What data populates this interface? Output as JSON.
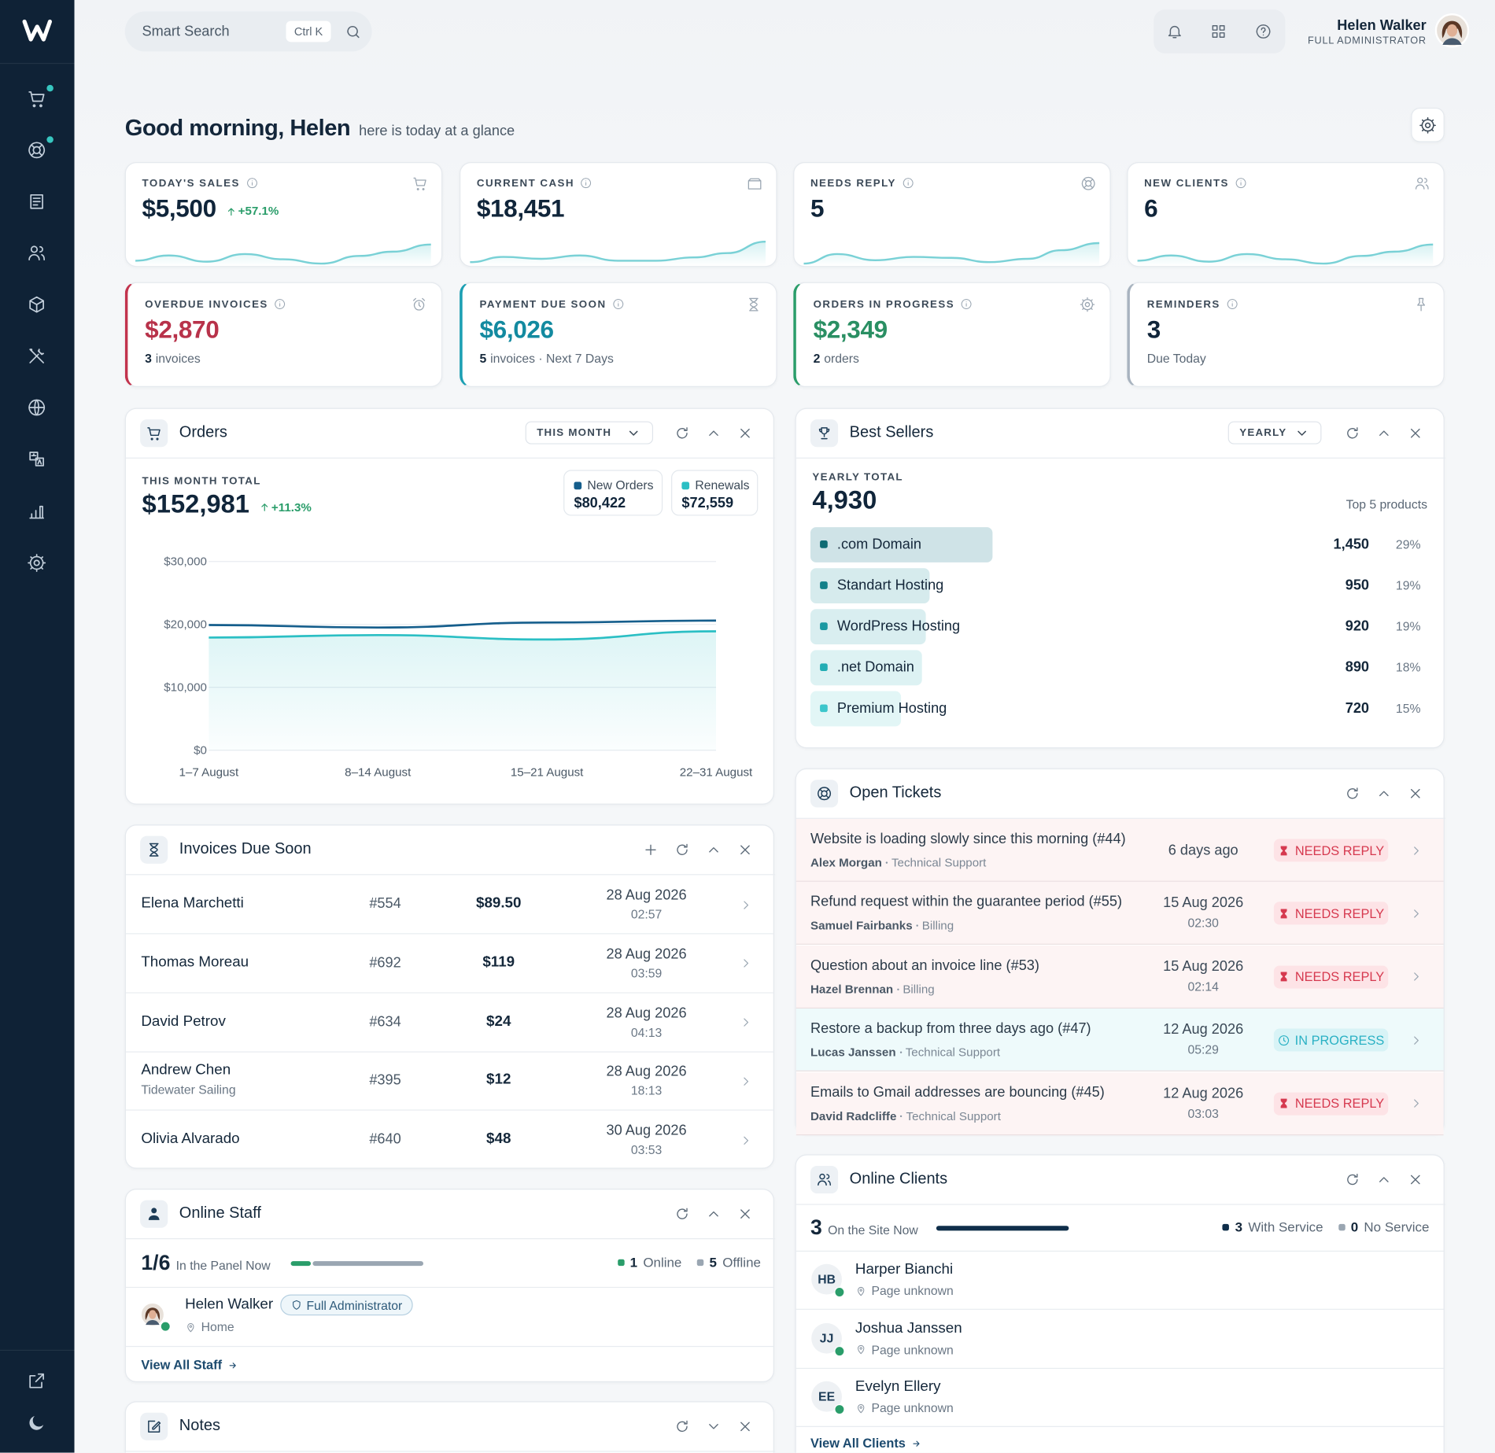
{
  "topbar": {
    "search_placeholder": "Smart Search",
    "shortcut": "Ctrl K",
    "user_name": "Helen Walker",
    "user_role": "FULL ADMINISTRATOR"
  },
  "greeting": {
    "title": "Good morning, Helen",
    "subtitle": "here is today at a glance"
  },
  "kpis": [
    {
      "label": "TODAY'S SALES",
      "value": "$5,500",
      "change": "+57.1%"
    },
    {
      "label": "CURRENT CASH",
      "value": "$18,451"
    },
    {
      "label": "NEEDS REPLY",
      "value": "5"
    },
    {
      "label": "NEW CLIENTS",
      "value": "6"
    }
  ],
  "status_cards": [
    {
      "label": "OVERDUE INVOICES",
      "value": "$2,870",
      "count": "3",
      "note": "invoices"
    },
    {
      "label": "PAYMENT DUE SOON",
      "value": "$6,026",
      "count": "5",
      "note": "invoices · Next 7 Days"
    },
    {
      "label": "ORDERS IN PROGRESS",
      "value": "$2,349",
      "count": "2",
      "note": "orders"
    },
    {
      "label": "REMINDERS",
      "value": "3",
      "note": "Due Today"
    }
  ],
  "orders": {
    "title": "Orders",
    "period": "THIS MONTH",
    "total_label": "THIS MONTH TOTAL",
    "total": "$152,981",
    "change": "+11.3%",
    "chart": {
      "type": "line",
      "categories": [
        "1–7 August",
        "8–14 August",
        "15–21 August",
        "22–31 August"
      ],
      "series": [
        {
          "name": "New Orders",
          "total": "$80,422",
          "color": "#155e8c",
          "values": [
            19900,
            19500,
            20300,
            20600
          ]
        },
        {
          "name": "Renewals",
          "total": "$72,559",
          "color": "#2bbfc4",
          "values": [
            17900,
            18300,
            17600,
            18900
          ]
        }
      ],
      "ylim": [
        0,
        30000
      ],
      "yticks": [
        {
          "value": 0,
          "label": "$0"
        },
        {
          "value": 10000,
          "label": "$10,000"
        },
        {
          "value": 20000,
          "label": "$20,000"
        },
        {
          "value": 30000,
          "label": "$30,000"
        }
      ],
      "grid": true
    }
  },
  "best_sellers": {
    "title": "Best Sellers",
    "period": "YEARLY",
    "total_label": "YEARLY TOTAL",
    "total": "4,930",
    "note": "Top 5 products",
    "items": [
      {
        "name": ".com Domain",
        "value": 1450,
        "value_label": "1,450",
        "share": "29%",
        "color": "#0f6b73"
      },
      {
        "name": "Standart Hosting",
        "value": 950,
        "value_label": "950",
        "share": "19%",
        "color": "#138089"
      },
      {
        "name": "WordPress Hosting",
        "value": 920,
        "value_label": "920",
        "share": "19%",
        "color": "#1a99a2"
      },
      {
        "name": ".net Domain",
        "value": 890,
        "value_label": "890",
        "share": "18%",
        "color": "#23adb4"
      },
      {
        "name": "Premium Hosting",
        "value": 720,
        "value_label": "720",
        "share": "15%",
        "color": "#3cc6cb"
      }
    ]
  },
  "open_tickets": {
    "title": "Open Tickets",
    "rows": [
      {
        "subject": "Website is loading slowly since this morning (#44)",
        "client": "Alex Morgan",
        "department": "Technical Support",
        "date": "6 days ago",
        "status": "NEEDS REPLY"
      },
      {
        "subject": "Refund request within the guarantee period (#55)",
        "client": "Samuel Fairbanks",
        "department": "Billing",
        "date": "15 Aug 2026",
        "time": "02:30",
        "status": "NEEDS REPLY"
      },
      {
        "subject": "Question about an invoice line (#53)",
        "client": "Hazel Brennan",
        "department": "Billing",
        "date": "15 Aug 2026",
        "time": "02:14",
        "status": "NEEDS REPLY"
      },
      {
        "subject": "Restore a backup from three days ago (#47)",
        "client": "Lucas Janssen",
        "department": "Technical Support",
        "date": "12 Aug 2026",
        "time": "05:29",
        "status": "IN PROGRESS"
      },
      {
        "subject": "Emails to Gmail addresses are bouncing (#45)",
        "client": "David Radcliffe",
        "department": "Technical Support",
        "date": "12 Aug 2026",
        "time": "03:03",
        "status": "NEEDS REPLY"
      }
    ]
  },
  "invoices": {
    "title": "Invoices Due Soon",
    "rows": [
      {
        "name": "Elena Marchetti",
        "number": "#554",
        "amount": "$89.50",
        "date": "28 Aug 2026",
        "time": "02:57"
      },
      {
        "name": "Thomas Moreau",
        "number": "#692",
        "amount": "$119",
        "date": "28 Aug 2026",
        "time": "03:59"
      },
      {
        "name": "David Petrov",
        "number": "#634",
        "amount": "$24",
        "date": "28 Aug 2026",
        "time": "04:13"
      },
      {
        "name": "Andrew Chen",
        "company": "Tidewater Sailing",
        "number": "#395",
        "amount": "$12",
        "date": "28 Aug 2026",
        "time": "18:13"
      },
      {
        "name": "Olivia Alvarado",
        "number": "#640",
        "amount": "$48",
        "date": "30 Aug 2026",
        "time": "03:53"
      }
    ]
  },
  "online_staff": {
    "title": "Online Staff",
    "count": "1/6",
    "count_label": "In the Panel Now",
    "online": 1,
    "online_label": "Online",
    "offline": 5,
    "offline_label": "Offline",
    "members": [
      {
        "name": "Helen Walker",
        "role": "Full Administrator",
        "location": "Home"
      }
    ],
    "view_all": "View All Staff"
  },
  "notes": {
    "title": "Notes"
  },
  "online_clients": {
    "title": "Online Clients",
    "count": 3,
    "count_label": "On the Site Now",
    "with_service": 3,
    "with_service_label": "With Service",
    "no_service": 0,
    "no_service_label": "No Service",
    "clients": [
      {
        "initials": "HB",
        "name": "Harper Bianchi",
        "location": "Page unknown"
      },
      {
        "initials": "JJ",
        "name": "Joshua Janssen",
        "location": "Page unknown"
      },
      {
        "initials": "EE",
        "name": "Evelyn Ellery",
        "location": "Page unknown"
      }
    ],
    "view_all": "View All Clients"
  }
}
